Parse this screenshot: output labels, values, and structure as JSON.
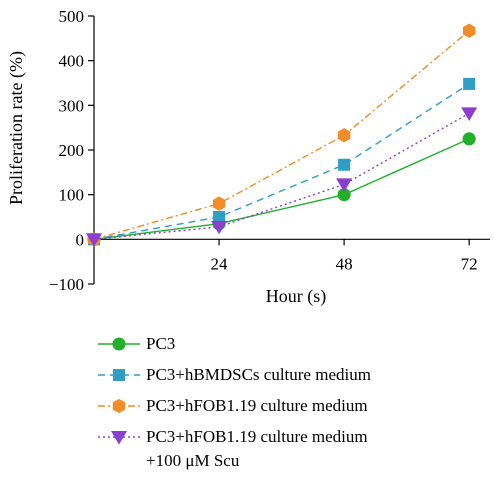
{
  "chart_data": {
    "type": "line",
    "x": [
      0,
      24,
      48,
      72
    ],
    "xlabel": "Hour (s)",
    "ylabel": "Proliferation rate (%)",
    "x_ticks": [
      "24",
      "48",
      "72"
    ],
    "x_tick_values": [
      24,
      48,
      72
    ],
    "y_ticks": [
      "−100",
      "0",
      "100",
      "200",
      "300",
      "400",
      "500"
    ],
    "y_tick_values": [
      -100,
      0,
      100,
      200,
      300,
      400,
      500
    ],
    "xlim": [
      0,
      76
    ],
    "ylim": [
      -100,
      500
    ],
    "grid": false,
    "legend_position": "bottom",
    "series": [
      {
        "name": "PC3",
        "values": [
          0,
          35,
          100,
          225
        ],
        "color": "#22b02a",
        "marker": "circle",
        "dash": "solid"
      },
      {
        "name": "PC3+hBMDSCs culture medium",
        "values": [
          0,
          50,
          167,
          348
        ],
        "color": "#2e9ec4",
        "marker": "square",
        "dash": "dashed"
      },
      {
        "name": "PC3+hFOB1.19 culture medium",
        "values": [
          0,
          80,
          233,
          467
        ],
        "color": "#f28c28",
        "marker": "hexagon",
        "dash": "dashdot"
      },
      {
        "name": "PC3+hFOB1.19 culture medium +100 μM Scu",
        "values": [
          0,
          28,
          123,
          282
        ],
        "color": "#8a3fd1",
        "marker": "triangle-down",
        "dash": "dotted"
      }
    ]
  },
  "legend": [
    {
      "lines": [
        "PC3"
      ]
    },
    {
      "lines": [
        "PC3+hBMDSCs culture medium"
      ]
    },
    {
      "lines": [
        "PC3+hFOB1.19 culture medium"
      ]
    },
    {
      "lines": [
        "PC3+hFOB1.19 culture medium",
        "+100 μM Scu"
      ]
    }
  ]
}
